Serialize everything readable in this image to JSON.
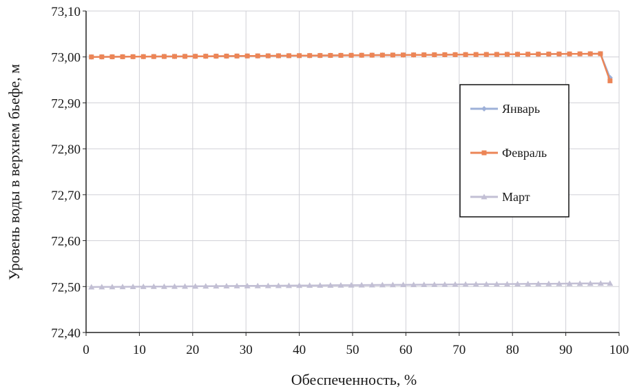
{
  "chart_data": {
    "type": "line",
    "title": "",
    "xlabel": "Обеспеченность, %",
    "ylabel": "Уровень воды в верхнем бьефе, м",
    "xlim": [
      0,
      100
    ],
    "ylim": [
      72.4,
      73.1
    ],
    "x_ticks": [
      "0",
      "10",
      "20",
      "30",
      "40",
      "50",
      "60",
      "70",
      "80",
      "90",
      "100"
    ],
    "y_ticks": [
      "72,40",
      "72,50",
      "72,60",
      "72,70",
      "72,80",
      "72,90",
      "73,00",
      "73,10"
    ],
    "grid": true,
    "legend_position": "right",
    "x_start": 1.0,
    "x_step": 1.95,
    "points_per_series": 50,
    "series": [
      {
        "name": "Январь",
        "color": "#9db0d8",
        "marker": "diamond",
        "start_value": 73.0,
        "end_value": 73.007,
        "tail": [
          [
            96.5,
            73.007
          ],
          [
            98.3,
            72.955
          ]
        ]
      },
      {
        "name": "Февраль",
        "color": "#ec8556",
        "marker": "square",
        "start_value": 73.0,
        "end_value": 73.007,
        "tail": [
          [
            96.5,
            73.007
          ],
          [
            98.3,
            72.948
          ]
        ]
      },
      {
        "name": "Март",
        "color": "#c2bfd4",
        "marker": "triangle",
        "start_value": 72.499,
        "end_value": 72.507,
        "tail": [
          [
            98.3,
            72.507
          ]
        ]
      }
    ]
  }
}
